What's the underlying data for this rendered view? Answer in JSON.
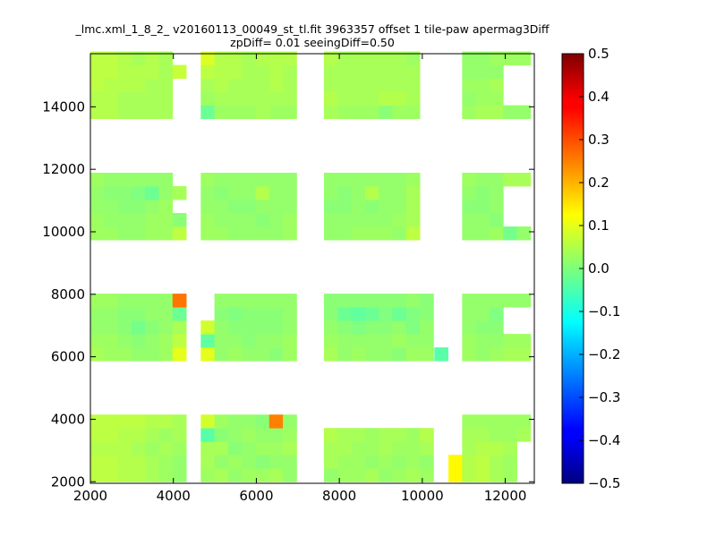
{
  "chart_data": {
    "type": "heatmap",
    "title": "_lmc.xml_1_8_2_ v20160113_00049_st_tl.fit 3963357 offset 1 tile-paw apermag3Diff",
    "subtitle": "zpDiff= 0.01 seeingDiff=0.50",
    "xlabel": "",
    "ylabel": "",
    "xlim": [
      2000,
      12700
    ],
    "ylim": [
      1950,
      15700
    ],
    "xticks": [
      2000,
      4000,
      6000,
      8000,
      10000,
      12000
    ],
    "yticks": [
      2000,
      4000,
      6000,
      8000,
      10000,
      12000,
      14000
    ],
    "colorbar": {
      "colormap": "jet",
      "range": [
        -0.5,
        0.5
      ],
      "ticks": [
        -0.5,
        -0.4,
        -0.3,
        -0.2,
        -0.1,
        0.0,
        0.1,
        0.2,
        0.3,
        0.4,
        0.5
      ],
      "tick_labels": [
        "−0.5",
        "−0.4",
        "−0.3",
        "−0.2",
        "−0.1",
        "0.0",
        "0.1",
        "0.2",
        "0.3",
        "0.4",
        "0.5"
      ]
    },
    "cell_size": [
      330,
      430
    ],
    "column_x": [
      2000,
      2330,
      2660,
      2990,
      3320,
      3650,
      3980,
      4660,
      4990,
      5320,
      5650,
      5980,
      6310,
      6640,
      7630,
      7960,
      8290,
      8620,
      8950,
      9280,
      9610,
      9940,
      10290,
      10630,
      10960,
      11290,
      11620,
      11950,
      12280
    ],
    "band_row_y": [
      [
        2000,
        2430,
        2860,
        3290,
        3720
      ],
      [
        5870,
        6300,
        6730,
        7160,
        7590
      ],
      [
        9740,
        10170,
        10600,
        11030,
        11460
      ],
      [
        13620,
        14050,
        14480,
        14910,
        15340
      ]
    ],
    "default_value": 0.03,
    "noise": [
      0.02,
      -0.01,
      0.0,
      0.03,
      -0.02,
      0.01,
      -0.03,
      0.02,
      -0.01,
      0.04,
      0.0,
      -0.02
    ],
    "bands": [
      {
        "name": "bottom",
        "rows": [
          [
            0.06,
            0.06,
            0.05,
            0.05,
            0.04,
            0.03,
            0.02,
            0.03,
            0.04,
            0.02,
            0.03,
            0.03,
            0.04,
            0.02,
            0.02,
            0.03,
            0.03,
            0.04,
            0.02,
            0.03,
            0.04,
            0.03,
            null,
            0.13,
            0.05,
            0.06,
            0.04,
            0.03,
            null
          ],
          [
            0.06,
            0.06,
            0.05,
            0.05,
            0.04,
            0.03,
            0.02,
            0.04,
            0.02,
            0.03,
            0.02,
            0.01,
            0.02,
            0.02,
            0.04,
            0.03,
            0.03,
            0.02,
            0.03,
            0.02,
            0.03,
            0.02,
            null,
            0.13,
            0.05,
            0.06,
            0.04,
            0.03,
            null
          ],
          [
            0.05,
            0.05,
            0.05,
            0.04,
            0.03,
            0.04,
            0.03,
            0.04,
            0.04,
            0.01,
            0.02,
            0.03,
            0.03,
            0.04,
            0.04,
            0.04,
            0.03,
            0.03,
            0.04,
            0.03,
            0.03,
            0.04,
            null,
            null,
            0.04,
            0.05,
            0.05,
            0.04,
            null
          ],
          [
            0.06,
            0.06,
            0.05,
            0.05,
            0.04,
            0.03,
            0.04,
            -0.04,
            0.01,
            0.02,
            0.03,
            0.02,
            0.02,
            0.03,
            0.05,
            0.04,
            0.04,
            0.03,
            0.04,
            0.04,
            0.03,
            0.05,
            null,
            null,
            0.04,
            0.04,
            0.03,
            0.03,
            0.04
          ],
          [
            0.06,
            0.06,
            0.06,
            0.06,
            0.05,
            0.05,
            0.04,
            0.08,
            0.03,
            0.02,
            0.02,
            0.01,
            0.25,
            0.02,
            null,
            null,
            null,
            null,
            null,
            null,
            null,
            null,
            null,
            null,
            0.03,
            0.03,
            0.03,
            0.03,
            0.03
          ]
        ]
      },
      {
        "name": "lower-middle",
        "rows": [
          [
            0.04,
            0.03,
            0.03,
            0.02,
            0.02,
            0.03,
            0.1,
            0.1,
            0.02,
            0.03,
            0.02,
            0.02,
            0.01,
            0.03,
            0.04,
            0.02,
            0.03,
            0.02,
            0.02,
            0.01,
            0.03,
            0.03,
            -0.04,
            null,
            0.03,
            0.02,
            0.03,
            0.04,
            0.04
          ],
          [
            0.03,
            0.03,
            0.02,
            0.01,
            0.02,
            0.03,
            0.06,
            -0.03,
            0.02,
            0.02,
            0.01,
            0.02,
            0.02,
            0.03,
            0.03,
            0.02,
            0.02,
            0.02,
            0.02,
            0.03,
            0.02,
            0.02,
            null,
            null,
            0.03,
            0.02,
            0.02,
            0.03,
            0.03
          ],
          [
            0.02,
            0.02,
            0.01,
            -0.01,
            0.01,
            0.02,
            0.04,
            0.08,
            0.02,
            0.01,
            0.01,
            0.01,
            0.01,
            0.02,
            0.02,
            0.01,
            0.0,
            0.01,
            0.01,
            0.02,
            0.0,
            0.02,
            null,
            null,
            0.02,
            0.01,
            0.01,
            null,
            null
          ],
          [
            0.02,
            0.02,
            0.01,
            0.01,
            0.02,
            0.02,
            -0.02,
            null,
            0.01,
            0.0,
            0.01,
            0.01,
            0.01,
            0.02,
            0.01,
            -0.02,
            -0.03,
            -0.02,
            0.0,
            -0.02,
            0.0,
            0.01,
            null,
            null,
            0.02,
            0.02,
            0.0,
            null,
            null
          ],
          [
            0.03,
            0.03,
            0.02,
            0.02,
            0.02,
            0.02,
            0.26,
            null,
            0.02,
            0.02,
            0.02,
            0.02,
            0.02,
            0.02,
            0.01,
            0.01,
            0.01,
            0.01,
            0.01,
            0.01,
            0.02,
            0.01,
            null,
            null,
            0.02,
            0.02,
            0.02,
            0.02,
            0.02
          ]
        ]
      },
      {
        "name": "upper-middle",
        "rows": [
          [
            0.03,
            0.03,
            0.02,
            0.02,
            0.03,
            0.03,
            0.06,
            0.03,
            0.03,
            0.02,
            0.02,
            0.02,
            0.02,
            0.03,
            0.02,
            0.02,
            0.03,
            0.03,
            0.03,
            0.02,
            0.06,
            null,
            null,
            null,
            0.02,
            0.02,
            0.03,
            -0.01,
            0.02
          ],
          [
            0.03,
            0.02,
            0.02,
            0.02,
            0.03,
            0.03,
            0.01,
            0.03,
            0.02,
            0.02,
            0.02,
            0.01,
            0.02,
            0.03,
            0.02,
            0.02,
            0.02,
            0.02,
            0.02,
            0.03,
            0.04,
            null,
            null,
            null,
            0.02,
            0.02,
            0.01,
            null,
            null
          ],
          [
            0.02,
            0.02,
            0.01,
            0.01,
            0.02,
            0.03,
            null,
            0.02,
            0.02,
            0.01,
            0.01,
            0.02,
            0.02,
            0.02,
            0.01,
            0.01,
            0.02,
            0.01,
            0.02,
            0.02,
            0.04,
            null,
            null,
            null,
            0.01,
            0.01,
            0.02,
            null,
            null
          ],
          [
            0.02,
            0.01,
            0.01,
            0.0,
            -0.02,
            0.02,
            0.04,
            0.02,
            0.01,
            0.02,
            0.02,
            0.05,
            0.02,
            0.02,
            0.02,
            0.01,
            0.02,
            0.05,
            0.02,
            0.02,
            0.04,
            null,
            null,
            null,
            0.02,
            0.01,
            0.02,
            null,
            null
          ],
          [
            0.03,
            0.02,
            0.02,
            0.02,
            0.02,
            0.02,
            null,
            0.03,
            0.02,
            0.02,
            0.02,
            0.02,
            0.02,
            0.02,
            0.02,
            0.02,
            0.02,
            0.02,
            0.02,
            0.02,
            0.03,
            null,
            null,
            null,
            0.03,
            0.02,
            0.02,
            0.04,
            0.04
          ]
        ]
      },
      {
        "name": "top",
        "rows": [
          [
            0.05,
            0.05,
            0.04,
            0.04,
            0.04,
            0.04,
            null,
            -0.02,
            0.03,
            0.03,
            0.03,
            0.04,
            0.03,
            0.03,
            0.04,
            0.03,
            0.03,
            0.03,
            0.01,
            0.03,
            0.03,
            null,
            null,
            null,
            0.03,
            0.04,
            0.04,
            0.02,
            0.02
          ],
          [
            0.05,
            0.05,
            0.04,
            0.04,
            0.04,
            0.04,
            null,
            0.03,
            0.04,
            0.04,
            0.04,
            0.04,
            0.04,
            0.04,
            0.05,
            0.04,
            0.04,
            0.04,
            0.05,
            0.05,
            0.04,
            null,
            null,
            null,
            0.02,
            0.03,
            0.03,
            null,
            null
          ],
          [
            0.06,
            0.05,
            0.05,
            0.05,
            0.04,
            0.04,
            null,
            0.04,
            0.05,
            0.04,
            0.04,
            0.04,
            0.05,
            0.04,
            0.04,
            0.04,
            0.04,
            0.04,
            0.04,
            0.04,
            0.04,
            null,
            null,
            null,
            0.03,
            0.03,
            0.04,
            null,
            null
          ],
          [
            0.06,
            0.06,
            0.05,
            0.05,
            0.05,
            0.04,
            0.07,
            0.06,
            0.05,
            0.05,
            0.04,
            0.04,
            0.05,
            0.04,
            0.04,
            0.04,
            0.04,
            0.04,
            0.04,
            0.04,
            0.04,
            null,
            null,
            null,
            0.02,
            0.02,
            0.02,
            null,
            null
          ],
          [
            0.06,
            0.06,
            0.05,
            0.04,
            0.05,
            0.04,
            null,
            0.09,
            0.05,
            0.05,
            0.04,
            0.05,
            0.05,
            0.05,
            0.05,
            0.04,
            0.04,
            0.04,
            0.04,
            0.04,
            0.03,
            null,
            null,
            null,
            0.02,
            0.02,
            0.03,
            0.03,
            0.03
          ]
        ]
      }
    ]
  }
}
